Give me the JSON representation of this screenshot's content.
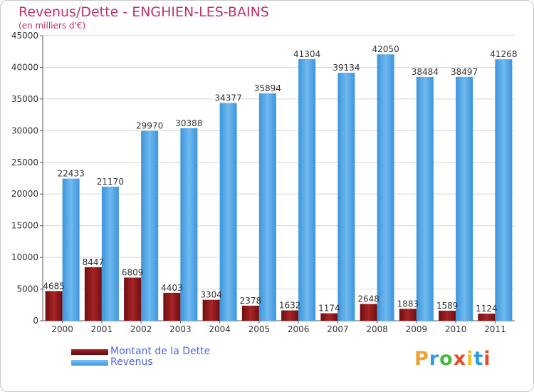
{
  "header": {
    "title": "Revenus/Dette - ENGHIEN-LES-BAINS",
    "subtitle": "(en milliers d'€)"
  },
  "legend": {
    "debt_label": "Montant de la Dette",
    "revenue_label": "Revenus"
  },
  "logo": {
    "text": "Proxiti",
    "colors": [
      "#f0a030",
      "#2f9be0",
      "#4ab83a",
      "#e84b2a",
      "#f0c028",
      "#2f9be0",
      "#e84b2a"
    ]
  },
  "colors": {
    "debt": "#7a1214",
    "debt_light": "#b83030",
    "revenue": "#4aa3e6",
    "revenue_light": "#7ec2f2",
    "text_accent": "#c0306f",
    "legend_text": "#4a62e8"
  },
  "chart_data": {
    "type": "bar",
    "title": "Revenus/Dette - ENGHIEN-LES-BAINS",
    "subtitle": "(en milliers d'€)",
    "categories": [
      "2000",
      "2001",
      "2002",
      "2003",
      "2004",
      "2005",
      "2006",
      "2007",
      "2008",
      "2009",
      "2010",
      "2011"
    ],
    "series": [
      {
        "name": "Montant de la Dette",
        "values": [
          4685,
          8447,
          6809,
          4403,
          3304,
          2378,
          1632,
          1174,
          2648,
          1883,
          1589,
          1124
        ]
      },
      {
        "name": "Revenus",
        "values": [
          22433,
          21170,
          29970,
          30388,
          34377,
          35894,
          41304,
          39134,
          42050,
          38484,
          38497,
          41268
        ]
      }
    ],
    "ylim": [
      0,
      45000
    ],
    "yticks": [
      0,
      5000,
      10000,
      15000,
      20000,
      25000,
      30000,
      35000,
      40000,
      45000
    ],
    "grid": true,
    "legend_position": "bottom-left"
  }
}
